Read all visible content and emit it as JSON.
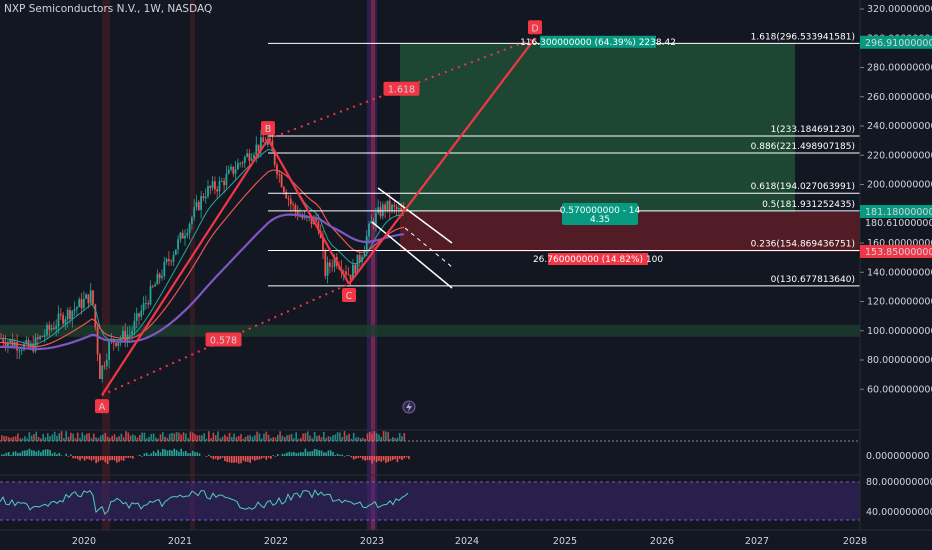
{
  "header": {
    "title": "NXP Semiconductors N.V., 1W, NASDAQ"
  },
  "price_axis": {
    "ticks": [
      "320.000000000",
      "300.000000000",
      "280.000000000",
      "260.000000000",
      "240.000000000",
      "220.000000000",
      "200.000000000",
      "180.000000000",
      "160.000000000",
      "140.000000000",
      "120.000000000",
      "100.000000000",
      "80.000000000",
      "60.000000000"
    ],
    "tick_values": [
      320,
      300,
      280,
      260,
      240,
      220,
      200,
      180,
      160,
      140,
      120,
      100,
      80,
      60
    ],
    "badges": {
      "target": "296.910000000",
      "current": "181.180000000",
      "current_sub": "180.610000000",
      "stop": "153.850000000"
    }
  },
  "indicator_axis": {
    "macd_zero": "0.000000000",
    "rsi_top": "80.000000000",
    "rsi_bottom": "40.000000000"
  },
  "time_axis": {
    "labels": [
      "2020",
      "2021",
      "2022",
      "2023",
      "2024",
      "2025",
      "2026",
      "2027",
      "2028"
    ]
  },
  "pattern": {
    "points": [
      {
        "label": "A",
        "price": 56
      },
      {
        "label": "B",
        "price": 231
      },
      {
        "label": "C",
        "price": 132
      },
      {
        "label": "D",
        "price": 300
      }
    ],
    "ratios": {
      "ab_bc": "0.578",
      "bc_cd": "1.618"
    }
  },
  "fib_levels": [
    {
      "text": "1.618(296.533941581)",
      "price": 296.53
    },
    {
      "text": "1(233.184691230)",
      "price": 233.18
    },
    {
      "text": "0.886(221.498907185)",
      "price": 221.5
    },
    {
      "text": "0.618(194.027063991)",
      "price": 194.03
    },
    {
      "text": "0.5(181.931252435)",
      "price": 181.93
    },
    {
      "text": "0.236(154.869436751)",
      "price": 154.87
    },
    {
      "text": "0(130.677813640)",
      "price": 130.68
    }
  ],
  "position": {
    "target_label": "116.300000000 (64.39%) 2238.42",
    "stop_label": "26.760000000 (14.82%) 100",
    "rr_line1": "0.570000000 - 14",
    "rr_line2": "4.35"
  },
  "colors": {
    "background": "#131722",
    "bull": "#26a69a",
    "bear": "#ef5350",
    "pattern": "#f23645",
    "rsi": "#7e57c2",
    "ma_purple": "#7e57c2"
  },
  "icons": {
    "lightning": "lightning-icon"
  }
}
